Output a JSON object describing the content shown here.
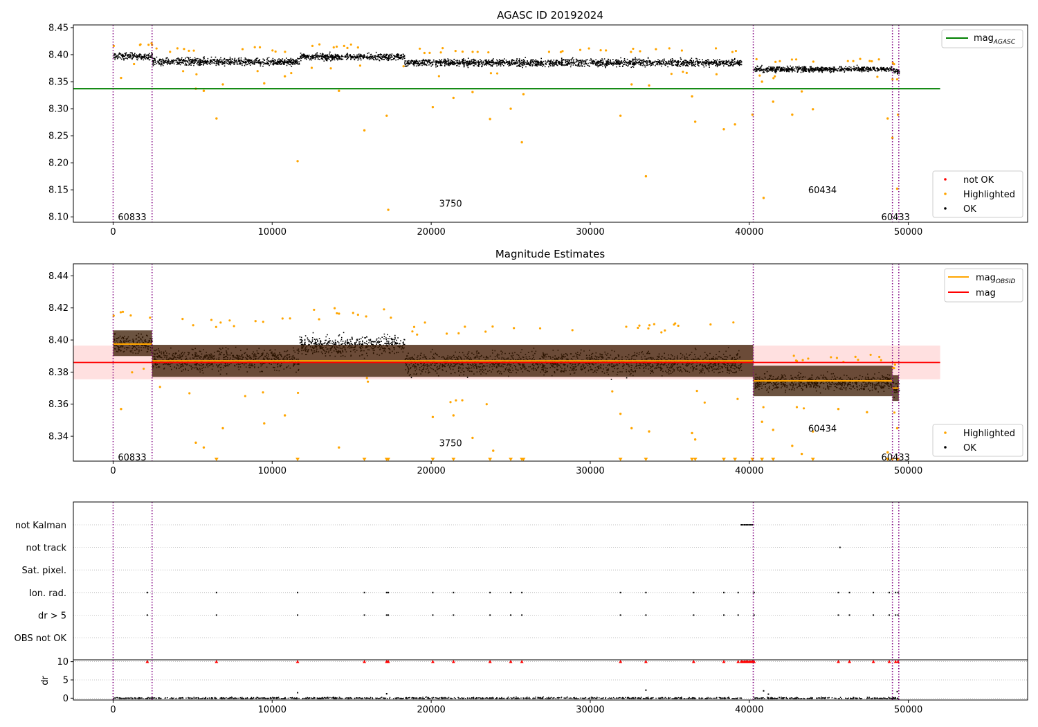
{
  "figure": {
    "title_top": "AGASC ID 20192024",
    "title_mid": "Magnitude Estimates"
  },
  "colors": {
    "ok": "#000000",
    "highlighted": "#ffa500",
    "not_ok": "#ff0000",
    "mag_agasc": "#008000",
    "mag": "#ff0000",
    "mag_obsid": "#ffa500",
    "obs_boundary": "#800080",
    "band": "#ffcccc",
    "grid": "#b0b0b0"
  },
  "chart_data": [
    {
      "id": "agasc",
      "type": "scatter",
      "title": "AGASC ID 20192024",
      "xlim": [
        -2500,
        57500
      ],
      "ylim": [
        8.09,
        8.455
      ],
      "xticks": [
        0,
        10000,
        20000,
        30000,
        40000,
        50000
      ],
      "yticks": [
        8.1,
        8.15,
        8.2,
        8.25,
        8.3,
        8.35,
        8.4,
        8.45
      ],
      "ytick_labels": [
        "8.10",
        "8.15",
        "8.20",
        "8.25",
        "8.30",
        "8.35",
        "8.40",
        "8.45"
      ],
      "mag_agasc": {
        "value": 8.337,
        "x_range": [
          -2500,
          52000
        ],
        "label": "mag_AGASC"
      },
      "obs_boundaries": [
        0,
        2450,
        40250,
        49000,
        49400
      ],
      "segments": [
        {
          "x0": 0,
          "x1": 2450,
          "center": 8.398,
          "spread": 0.016
        },
        {
          "x0": 2450,
          "x1": 11700,
          "center": 8.388,
          "spread": 0.018
        },
        {
          "x0": 11700,
          "x1": 18300,
          "center": 8.397,
          "spread": 0.016
        },
        {
          "x0": 18300,
          "x1": 39500,
          "center": 8.386,
          "spread": 0.018
        },
        {
          "x0": 40250,
          "x1": 49000,
          "center": 8.374,
          "spread": 0.013
        },
        {
          "x0": 49000,
          "x1": 49400,
          "center": 8.37,
          "spread": 0.013
        }
      ],
      "highlighted_outliers": [
        [
          500,
          8.357
        ],
        [
          5200,
          8.337
        ],
        [
          5700,
          8.333
        ],
        [
          6500,
          8.282
        ],
        [
          6900,
          8.345
        ],
        [
          9500,
          8.347
        ],
        [
          10800,
          8.36
        ],
        [
          11600,
          8.203
        ],
        [
          14200,
          8.333
        ],
        [
          15800,
          8.26
        ],
        [
          17200,
          8.287
        ],
        [
          17300,
          8.113
        ],
        [
          20100,
          8.303
        ],
        [
          21400,
          8.32
        ],
        [
          22600,
          8.331
        ],
        [
          23700,
          8.281
        ],
        [
          25000,
          8.3
        ],
        [
          25700,
          8.238
        ],
        [
          25800,
          8.327
        ],
        [
          31900,
          8.287
        ],
        [
          32600,
          8.345
        ],
        [
          33500,
          8.175
        ],
        [
          33700,
          8.343
        ],
        [
          36400,
          8.323
        ],
        [
          36600,
          8.276
        ],
        [
          38400,
          8.262
        ],
        [
          39100,
          8.271
        ],
        [
          40200,
          8.289
        ],
        [
          40800,
          8.35
        ],
        [
          40900,
          8.135
        ],
        [
          41500,
          8.313
        ],
        [
          42700,
          8.289
        ],
        [
          43300,
          8.332
        ],
        [
          44000,
          8.299
        ],
        [
          48700,
          8.282
        ],
        [
          49000,
          8.246
        ],
        [
          49300,
          8.152
        ],
        [
          49350,
          8.289
        ]
      ],
      "annotations": [
        {
          "text": "60833",
          "x": 300,
          "y": 8.1
        },
        {
          "text": "3750",
          "x": 20500,
          "y": 8.125
        },
        {
          "text": "60434",
          "x": 43700,
          "y": 8.15
        },
        {
          "text": "60433",
          "x": 48300,
          "y": 8.1
        }
      ],
      "legend_lines": [
        {
          "label": "mag",
          "sub": "AGASC",
          "color": "#008000"
        }
      ],
      "legend_markers": [
        {
          "label": "not OK",
          "color": "#ff0000"
        },
        {
          "label": "Highlighted",
          "color": "#ffa500"
        },
        {
          "label": "OK",
          "color": "#000000"
        }
      ]
    },
    {
      "id": "estimates",
      "type": "scatter",
      "title": "Magnitude Estimates",
      "xlim": [
        -2500,
        57500
      ],
      "ylim": [
        8.3245,
        8.4475
      ],
      "xticks": [
        0,
        10000,
        20000,
        30000,
        40000,
        50000
      ],
      "yticks": [
        8.34,
        8.36,
        8.38,
        8.4,
        8.42,
        8.44
      ],
      "ytick_labels": [
        "8.34",
        "8.36",
        "8.38",
        "8.40",
        "8.42",
        "8.44"
      ],
      "mag": {
        "value": 8.386,
        "x_range": [
          -2500,
          52000
        ],
        "band": [
          8.3755,
          8.3965
        ],
        "label": "mag"
      },
      "mag_obsid": [
        {
          "x0": 0,
          "x1": 2450,
          "value": 8.3975,
          "band": [
            8.39,
            8.406
          ]
        },
        {
          "x0": 2450,
          "x1": 40250,
          "value": 8.387,
          "band": [
            8.377,
            8.397
          ]
        },
        {
          "x0": 40250,
          "x1": 49000,
          "value": 8.3745,
          "band": [
            8.365,
            8.384
          ]
        },
        {
          "x0": 49000,
          "x1": 49400,
          "value": 8.37,
          "band": [
            8.362,
            8.378
          ]
        }
      ],
      "obs_boundaries": [
        0,
        2450,
        40250,
        49000,
        49400
      ],
      "segments": [
        {
          "x0": 0,
          "x1": 2450,
          "center": 8.398,
          "spread": 0.016
        },
        {
          "x0": 2450,
          "x1": 11700,
          "center": 8.388,
          "spread": 0.018
        },
        {
          "x0": 11700,
          "x1": 18300,
          "center": 8.397,
          "spread": 0.016
        },
        {
          "x0": 18300,
          "x1": 39500,
          "center": 8.386,
          "spread": 0.018
        },
        {
          "x0": 40250,
          "x1": 49000,
          "center": 8.374,
          "spread": 0.013
        },
        {
          "x0": 49000,
          "x1": 49400,
          "center": 8.37,
          "spread": 0.013
        }
      ],
      "highlighted_outliers": [
        [
          500,
          8.357
        ],
        [
          5200,
          8.336
        ],
        [
          5700,
          8.333
        ],
        [
          6900,
          8.345
        ],
        [
          9500,
          8.348
        ],
        [
          10800,
          8.353
        ],
        [
          14200,
          8.333
        ],
        [
          20100,
          8.352
        ],
        [
          21400,
          8.353
        ],
        [
          22600,
          8.339
        ],
        [
          23900,
          8.331
        ],
        [
          31900,
          8.354
        ],
        [
          32600,
          8.345
        ],
        [
          33700,
          8.343
        ],
        [
          36400,
          8.342
        ],
        [
          36600,
          8.338
        ],
        [
          40800,
          8.349
        ],
        [
          41500,
          8.344
        ],
        [
          42700,
          8.334
        ],
        [
          43300,
          8.329
        ],
        [
          44000,
          8.343
        ],
        [
          45600,
          8.357
        ],
        [
          47400,
          8.355
        ],
        [
          48700,
          8.33
        ],
        [
          49300,
          8.345
        ]
      ],
      "clipped_markers": [
        6500,
        11600,
        15800,
        17200,
        17300,
        20100,
        21400,
        23700,
        25000,
        25700,
        25800,
        31900,
        33500,
        36400,
        36600,
        38400,
        39100,
        40200,
        40800,
        41500,
        44000,
        48700,
        49000,
        49300,
        49350
      ],
      "annotations": [
        {
          "text": "60833",
          "x": 300,
          "y": 8.327
        },
        {
          "text": "3750",
          "x": 20500,
          "y": 8.336
        },
        {
          "text": "60434",
          "x": 43700,
          "y": 8.345
        },
        {
          "text": "60433",
          "x": 48300,
          "y": 8.327
        }
      ],
      "legend_lines": [
        {
          "label": "mag",
          "sub": "OBSID",
          "color": "#ffa500"
        },
        {
          "label": "mag",
          "sub": "",
          "color": "#ff0000"
        }
      ],
      "legend_markers": [
        {
          "label": "Highlighted",
          "color": "#ffa500"
        },
        {
          "label": "OK",
          "color": "#000000"
        }
      ]
    },
    {
      "id": "flags",
      "type": "scatter",
      "xlim": [
        -2500,
        57500
      ],
      "categories": [
        "not Kalman",
        "not track",
        "Sat. pixel.",
        "Ion. rad.",
        "dr > 5",
        "OBS not OK"
      ],
      "obs_boundaries": [
        0,
        2450,
        40250,
        49000,
        49400
      ],
      "events": {
        "not Kalman": [
          39500,
          39600,
          39700,
          39800,
          39900,
          40000,
          40100,
          40200
        ],
        "not track": [
          45700
        ],
        "Sat. pixel.": [],
        "Ion. rad.": [
          2150,
          6500,
          11600,
          15800,
          17200,
          17300,
          20100,
          21400,
          23700,
          25000,
          25700,
          31900,
          33500,
          36500,
          38400,
          39300,
          40300,
          45600,
          46300,
          47800,
          48800,
          49200,
          49350
        ],
        "dr > 5": [
          2150,
          6500,
          11600,
          15800,
          17200,
          17300,
          20100,
          21400,
          23700,
          25000,
          25700,
          31900,
          33500,
          36500,
          38400,
          39300,
          40300,
          45600,
          46300,
          47800,
          48800,
          49200,
          49350
        ],
        "OBS not OK": []
      }
    },
    {
      "id": "dr",
      "type": "scatter",
      "ylabel": "dr",
      "xlim": [
        -2500,
        57500
      ],
      "ylim": [
        -0.5,
        10.5
      ],
      "xticks": [
        0,
        10000,
        20000,
        30000,
        40000,
        50000
      ],
      "yticks": [
        0,
        5,
        10
      ],
      "ytick_labels": [
        "0",
        "5",
        "10"
      ],
      "obs_boundaries": [
        0,
        2450,
        40250,
        49000,
        49400
      ],
      "clip_value": 10,
      "clipped_events": [
        2150,
        6500,
        11600,
        15800,
        17200,
        17300,
        20100,
        21400,
        23700,
        25000,
        25700,
        31900,
        33500,
        36500,
        38400,
        39300,
        39500,
        39600,
        39700,
        39800,
        39900,
        40000,
        40100,
        40200,
        40300,
        45600,
        46300,
        47800,
        48800,
        49200,
        49350
      ],
      "spikes": [
        [
          11600,
          1.5
        ],
        [
          17200,
          1.2
        ],
        [
          33500,
          2.2
        ],
        [
          40900,
          2.0
        ],
        [
          41200,
          1.1
        ],
        [
          49300,
          1.8
        ]
      ],
      "segments": [
        [
          0,
          39500
        ],
        [
          40250,
          49400
        ]
      ]
    }
  ]
}
